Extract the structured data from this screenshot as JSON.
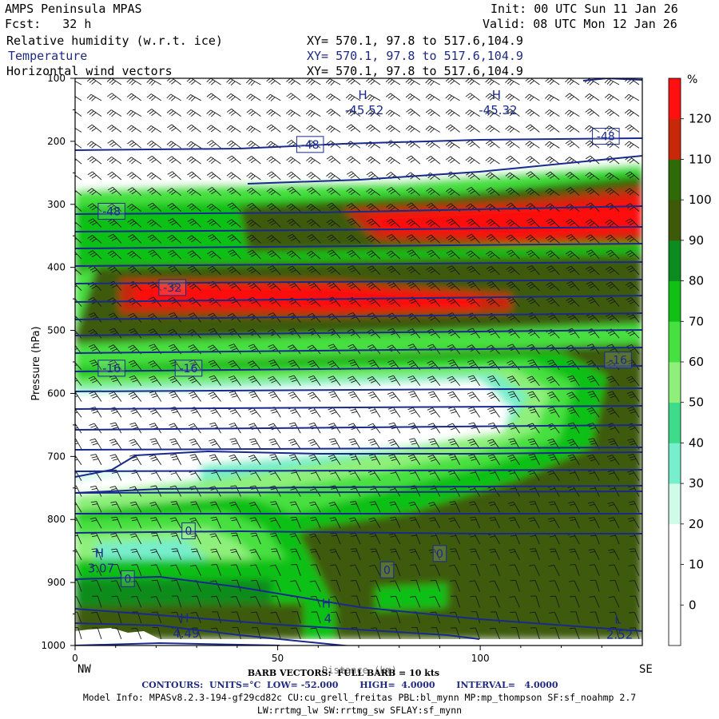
{
  "header": {
    "model": "AMPS Peninsula MPAS",
    "init_label": "Init:",
    "init_value": "00 UTC Sun 11 Jan 26",
    "fcst_label": "Fcst:",
    "fcst_value": "32 h",
    "valid_label": "Valid:",
    "valid_value": "08 UTC Mon 12 Jan 26",
    "fields": [
      {
        "name": "Relative humidity (w.r.t. ice)",
        "xy": "XY= 570.1, 97.8 to 517.6,104.9"
      },
      {
        "name": "Temperature",
        "xy": "XY= 570.1, 97.8 to 517.6,104.9"
      },
      {
        "name": "Horizontal wind vectors",
        "xy": "XY= 570.1, 97.8 to 517.6,104.9"
      }
    ]
  },
  "footer": {
    "left_end": "NW",
    "right_end": "SE",
    "barb_info": "BARB VECTORS:  FULL BARB = 10 kts",
    "distance_label": "Distance (km)",
    "contours": "CONTOURS:  UNITS=°C  LOW= -52.000       HIGH=  4.0000       INTERVAL=   4.0000",
    "model_info_1": "Model Info: MPASv8.2.3-194-gf29cd82c CU:cu_grell_freitas PBL:bl_mynn MP:mp_thompson SF:sf_noahmp 2.7",
    "model_info_2": "LW:rrtmg_lw SW:rrtmg_sw SFLAY:sf_mynn"
  },
  "colorbar": {
    "unit": "%",
    "labels": [
      "120",
      "110",
      "100",
      "90",
      "80",
      "70",
      "60",
      "50",
      "40",
      "30",
      "20",
      "10",
      "0"
    ],
    "colors": [
      "#ffffff",
      "#ffffff",
      "#ffffff",
      "#cffbe8",
      "#77eecc",
      "#3ddb8a",
      "#8ef07a",
      "#46e040",
      "#11c014",
      "#0c8c1f",
      "#3e5a08",
      "#2e6b08",
      "#c82808",
      "#ff1010"
    ]
  },
  "chart_data": {
    "type": "cross-section",
    "x_range": [
      0,
      140
    ],
    "x_ticks": [
      0,
      50,
      100
    ],
    "xlabel": "Distance (km)",
    "ylabel": "Pressure (hPa)",
    "y_range": [
      1000,
      100
    ],
    "y_ticks": [
      100,
      200,
      300,
      400,
      500,
      600,
      700,
      800,
      900,
      1000
    ],
    "temperature_labels": [
      {
        "x": 58,
        "p": 205,
        "text": "-48"
      },
      {
        "x": 131,
        "p": 192,
        "text": "-48"
      },
      {
        "x": 9,
        "p": 311,
        "text": "-48"
      },
      {
        "x": 24,
        "p": 432,
        "text": "-32"
      },
      {
        "x": 9,
        "p": 560,
        "text": "-16"
      },
      {
        "x": 28,
        "p": 560,
        "text": "-16"
      },
      {
        "x": 134,
        "p": 547,
        "text": "-16"
      },
      {
        "x": 28,
        "p": 818,
        "text": "0"
      },
      {
        "x": 90,
        "p": 854,
        "text": "0"
      },
      {
        "x": 77,
        "p": 880,
        "text": "0"
      },
      {
        "x": 13,
        "p": 894,
        "text": "0"
      }
    ],
    "highs_lows": [
      {
        "x": 71,
        "p": 133,
        "marker": "H",
        "value": "-45.52"
      },
      {
        "x": 104,
        "p": 133,
        "marker": "H",
        "value": "-45.32"
      },
      {
        "x": 6,
        "p": 860,
        "marker": "H",
        "value": "3.07"
      },
      {
        "x": 27,
        "p": 963,
        "marker": "H",
        "value": "4.49"
      },
      {
        "x": 62,
        "p": 940,
        "marker": "H",
        "value": "4"
      },
      {
        "x": 134,
        "p": 965,
        "marker": "L",
        "value": "2.52"
      }
    ]
  }
}
